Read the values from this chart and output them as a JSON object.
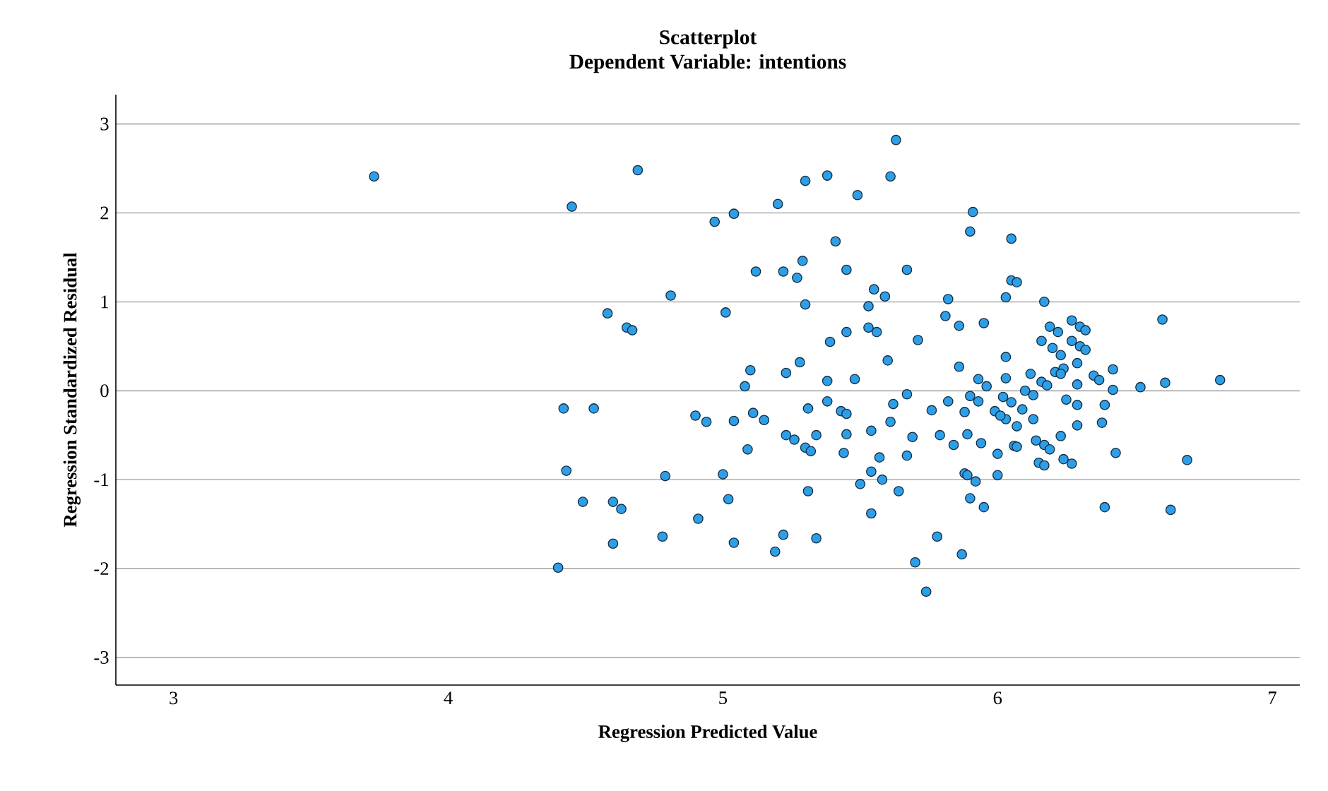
{
  "chart_data": {
    "type": "scatter",
    "title": "Scatterplot",
    "subtitle": "Dependent Variable: intentions",
    "xlabel": "Regression Predicted Value",
    "ylabel": "Regression Standardized Residual",
    "xlim": [
      2.79,
      7.1
    ],
    "ylim": [
      -3.31,
      3.33
    ],
    "xticks": [
      3,
      4,
      5,
      6,
      7
    ],
    "yticks": [
      -3,
      -2,
      -1,
      0,
      1,
      2,
      3
    ],
    "grid": "y",
    "color": "#2e9fe6",
    "x": [
      3.73,
      4.69,
      4.45,
      5.2,
      5.04,
      4.97,
      5.12,
      5.22,
      4.81,
      4.58,
      5.01,
      4.65,
      4.67,
      5.1,
      5.23,
      5.08,
      4.42,
      4.53,
      4.9,
      4.94,
      5.04,
      5.11,
      5.15,
      5.23,
      5.09,
      4.43,
      4.79,
      5.0,
      4.49,
      4.6,
      4.63,
      5.02,
      4.91,
      4.6,
      4.78,
      5.04,
      5.22,
      5.19,
      4.4,
      5.63,
      5.3,
      5.38,
      5.49,
      5.61,
      5.91,
      5.9,
      6.05,
      5.41,
      5.29,
      5.27,
      5.45,
      5.67,
      6.05,
      5.55,
      5.59,
      5.3,
      5.53,
      5.82,
      6.03,
      5.81,
      5.86,
      5.95,
      5.53,
      5.56,
      5.45,
      5.39,
      5.71,
      5.6,
      6.03,
      5.28,
      5.86,
      5.38,
      5.48,
      5.67,
      5.93,
      5.96,
      6.03,
      5.38,
      5.31,
      5.43,
      5.45,
      5.62,
      5.76,
      5.82,
      5.88,
      5.9,
      5.93,
      5.99,
      6.02,
      6.03,
      5.26,
      5.34,
      5.45,
      5.54,
      5.61,
      5.69,
      5.79,
      5.89,
      5.94,
      5.84,
      6.06,
      5.3,
      5.32,
      5.44,
      5.57,
      5.67,
      6.0,
      5.54,
      5.58,
      5.5,
      5.64,
      5.88,
      5.89,
      5.92,
      6.0,
      5.31,
      5.9,
      5.95,
      5.54,
      5.34,
      5.78,
      5.87,
      5.7,
      5.74,
      6.07,
      6.17,
      6.6,
      6.19,
      6.22,
      6.27,
      6.3,
      6.32,
      6.16,
      6.2,
      6.27,
      6.3,
      6.32,
      6.23,
      6.29,
      6.24,
      6.21,
      6.23,
      6.42,
      6.12,
      6.35,
      6.37,
      6.16,
      6.18,
      6.29,
      6.42,
      6.52,
      6.61,
      6.81,
      6.1,
      6.13,
      6.05,
      6.25,
      6.29,
      6.39,
      6.09,
      6.01,
      6.13,
      6.07,
      6.29,
      6.38,
      6.23,
      6.14,
      6.17,
      6.19,
      6.07,
      6.43,
      6.69,
      6.15,
      6.17,
      6.24,
      6.27,
      6.39,
      6.63
    ],
    "values": [
      2.41,
      2.48,
      2.07,
      2.1,
      1.99,
      1.9,
      1.34,
      1.34,
      1.07,
      0.87,
      0.88,
      0.71,
      0.68,
      0.23,
      0.2,
      0.05,
      -0.2,
      -0.2,
      -0.28,
      -0.35,
      -0.34,
      -0.25,
      -0.33,
      -0.5,
      -0.66,
      -0.9,
      -0.96,
      -0.94,
      -1.25,
      -1.25,
      -1.33,
      -1.22,
      -1.44,
      -1.72,
      -1.64,
      -1.71,
      -1.62,
      -1.81,
      -1.99,
      2.82,
      2.36,
      2.42,
      2.2,
      2.41,
      2.01,
      1.79,
      1.71,
      1.68,
      1.46,
      1.27,
      1.36,
      1.36,
      1.24,
      1.14,
      1.06,
      0.97,
      0.95,
      1.03,
      1.05,
      0.84,
      0.73,
      0.76,
      0.71,
      0.66,
      0.66,
      0.55,
      0.57,
      0.34,
      0.38,
      0.32,
      0.27,
      0.11,
      0.13,
      -0.04,
      0.13,
      0.05,
      0.14,
      -0.12,
      -0.2,
      -0.23,
      -0.26,
      -0.15,
      -0.22,
      -0.12,
      -0.24,
      -0.06,
      -0.12,
      -0.23,
      -0.07,
      -0.32,
      -0.55,
      -0.5,
      -0.49,
      -0.45,
      -0.35,
      -0.52,
      -0.5,
      -0.49,
      -0.59,
      -0.61,
      -0.62,
      -0.64,
      -0.68,
      -0.7,
      -0.75,
      -0.73,
      -0.71,
      -0.91,
      -1.0,
      -1.05,
      -1.13,
      -0.93,
      -0.95,
      -1.02,
      -0.95,
      -1.13,
      -1.21,
      -1.31,
      -1.38,
      -1.66,
      -1.64,
      -1.84,
      -1.93,
      -2.26,
      1.22,
      1.0,
      0.8,
      0.72,
      0.66,
      0.79,
      0.72,
      0.68,
      0.56,
      0.48,
      0.56,
      0.5,
      0.46,
      0.4,
      0.31,
      0.25,
      0.21,
      0.19,
      0.24,
      0.19,
      0.17,
      0.12,
      0.1,
      0.06,
      0.07,
      0.01,
      0.04,
      0.09,
      0.12,
      0.0,
      -0.05,
      -0.13,
      -0.1,
      -0.16,
      -0.16,
      -0.21,
      -0.28,
      -0.32,
      -0.4,
      -0.39,
      -0.36,
      -0.51,
      -0.56,
      -0.61,
      -0.66,
      -0.63,
      -0.7,
      -0.78,
      -0.81,
      -0.84,
      -0.77,
      -0.82,
      -1.31,
      -1.34
    ]
  }
}
